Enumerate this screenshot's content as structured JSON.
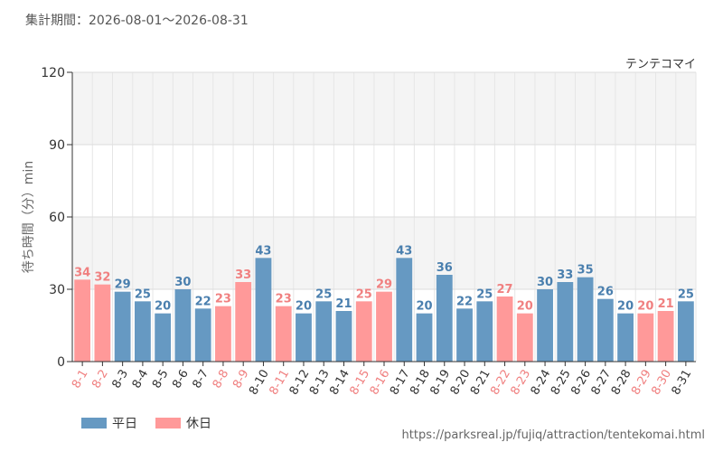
{
  "header": {
    "title": "集計期間：2026-08-01～2026-08-31"
  },
  "chart_data": {
    "type": "bar",
    "attraction": "テンテコマイ",
    "ylabel": "待ち時間（分）min",
    "ylim": [
      0,
      120
    ],
    "yticks": [
      0,
      30,
      60,
      90,
      120
    ],
    "categories": [
      "8-1",
      "8-2",
      "8-3",
      "8-4",
      "8-5",
      "8-6",
      "8-7",
      "8-8",
      "8-9",
      "8-10",
      "8-11",
      "8-12",
      "8-13",
      "8-14",
      "8-15",
      "8-16",
      "8-17",
      "8-18",
      "8-19",
      "8-20",
      "8-21",
      "8-22",
      "8-23",
      "8-24",
      "8-25",
      "8-26",
      "8-27",
      "8-28",
      "8-29",
      "8-30",
      "8-31"
    ],
    "values": [
      34,
      32,
      29,
      25,
      20,
      30,
      22,
      23,
      33,
      43,
      23,
      20,
      25,
      21,
      25,
      29,
      43,
      20,
      36,
      22,
      25,
      27,
      20,
      30,
      33,
      35,
      26,
      20,
      20,
      21,
      25
    ],
    "day_type": [
      "holiday",
      "holiday",
      "weekday",
      "weekday",
      "weekday",
      "weekday",
      "weekday",
      "holiday",
      "holiday",
      "weekday",
      "holiday",
      "weekday",
      "weekday",
      "weekday",
      "holiday",
      "holiday",
      "weekday",
      "weekday",
      "weekday",
      "weekday",
      "weekday",
      "holiday",
      "holiday",
      "weekday",
      "weekday",
      "weekday",
      "weekday",
      "weekday",
      "holiday",
      "holiday",
      "weekday"
    ],
    "series": [
      {
        "key": "weekday",
        "name": "平日",
        "color": "#6699c2",
        "label_color": "#4a7fae"
      },
      {
        "key": "holiday",
        "name": "休日",
        "color": "#ff9999",
        "label_color": "#f08080"
      }
    ]
  },
  "footer": {
    "source": "https://parksreal.jp/fujiq/attraction/tentekomai.html"
  }
}
